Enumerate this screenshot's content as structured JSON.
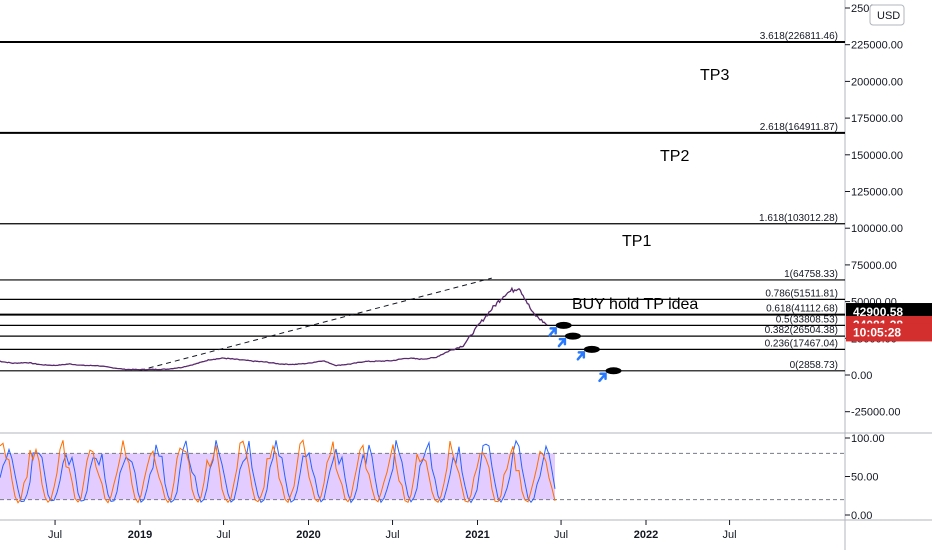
{
  "chart_data": {
    "type": "line",
    "currency": "USD",
    "price_axis": {
      "range": [
        -40000,
        255000
      ],
      "ticks": [
        "250000.00",
        "225000.00",
        "200000.00",
        "175000.00",
        "150000.00",
        "125000.00",
        "100000.00",
        "75000.00",
        "50000.00",
        "25000.00",
        "0.00",
        "-25000.00"
      ],
      "tick_values": [
        250000,
        225000,
        200000,
        175000,
        150000,
        125000,
        100000,
        75000,
        50000,
        25000,
        0,
        -25000
      ]
    },
    "fib_levels": [
      {
        "label": "3.618(226811.46)",
        "value": 226811.46,
        "bold": true
      },
      {
        "label": "2.618(164911.87)",
        "value": 164911.87,
        "bold": true
      },
      {
        "label": "1.618(103012.28)",
        "value": 103012.28,
        "bold": false
      },
      {
        "label": "1(64758.33)",
        "value": 64758.33,
        "bold": false
      },
      {
        "label": "0.786(51511.81)",
        "value": 51511.81,
        "bold": false
      },
      {
        "label": "0.618(41112.68)",
        "value": 41112.68,
        "bold": true
      },
      {
        "label": "0.5(33808.53)",
        "value": 33808.53,
        "bold": false
      },
      {
        "label": "0.382(26504.38)",
        "value": 26504.38,
        "bold": false
      },
      {
        "label": "0.236(17467.04)",
        "value": 17467.04,
        "bold": false
      },
      {
        "label": "0(2858.73)",
        "value": 2858.73,
        "bold": false
      }
    ],
    "annotations": [
      {
        "text": "TP3",
        "value": 205000
      },
      {
        "text": "TP2",
        "value": 150000
      },
      {
        "text": "TP1",
        "value": 92000
      },
      {
        "text": "BUY hold TP idea",
        "value": 49000
      }
    ],
    "price_badges": [
      {
        "text": "42900.58",
        "value": 42900.58,
        "color": "#000000"
      },
      {
        "text": "34081.38",
        "value": 34081.38,
        "color": "#d32f2f"
      },
      {
        "text": "10:05:28",
        "value": 29000,
        "color": "#d32f2f"
      }
    ],
    "time_axis": {
      "labels": [
        {
          "text": "Jul",
          "date": "2018-07-01",
          "bold": false
        },
        {
          "text": "2019",
          "date": "2019-01-01",
          "bold": true
        },
        {
          "text": "Jul",
          "date": "2019-07-01",
          "bold": false
        },
        {
          "text": "2020",
          "date": "2020-01-01",
          "bold": true
        },
        {
          "text": "Jul",
          "date": "2020-07-01",
          "bold": false
        },
        {
          "text": "2021",
          "date": "2021-01-01",
          "bold": true
        },
        {
          "text": "Jul",
          "date": "2021-07-01",
          "bold": false
        },
        {
          "text": "2022",
          "date": "2022-01-01",
          "bold": true
        },
        {
          "text": "Jul",
          "date": "2022-07-01",
          "bold": false
        }
      ]
    },
    "price_series": {
      "dates": [
        "2018-03-01",
        "2018-04-01",
        "2018-05-01",
        "2018-06-01",
        "2018-07-01",
        "2018-08-01",
        "2018-09-01",
        "2018-10-01",
        "2018-11-01",
        "2018-12-01",
        "2019-01-01",
        "2019-02-01",
        "2019-03-01",
        "2019-04-01",
        "2019-05-01",
        "2019-06-01",
        "2019-07-01",
        "2019-08-01",
        "2019-09-01",
        "2019-10-01",
        "2019-11-01",
        "2019-12-01",
        "2020-01-01",
        "2020-02-01",
        "2020-03-01",
        "2020-04-01",
        "2020-05-01",
        "2020-06-01",
        "2020-07-01",
        "2020-08-01",
        "2020-09-01",
        "2020-10-01",
        "2020-11-01",
        "2020-12-01",
        "2021-01-01",
        "2021-02-01",
        "2021-03-01",
        "2021-04-01",
        "2021-05-01",
        "2021-06-01"
      ],
      "values": [
        9500,
        8000,
        8500,
        7000,
        6500,
        7500,
        6500,
        6400,
        5000,
        3800,
        3700,
        3800,
        4000,
        5200,
        7500,
        10500,
        11500,
        10500,
        9500,
        8800,
        7500,
        7200,
        8000,
        9800,
        6500,
        7500,
        9200,
        9400,
        9800,
        11500,
        10800,
        11800,
        16500,
        20000,
        33000,
        45000,
        55000,
        60000,
        42000,
        34081
      ]
    },
    "trend_line": {
      "start": {
        "date": "2019-01-01",
        "value": 3200
      },
      "end": {
        "date": "2021-02-01",
        "value": 66000
      },
      "style": "dashed"
    },
    "buy_markers": [
      {
        "date": "2021-06-15",
        "value": 33808.53
      },
      {
        "date": "2021-07-05",
        "value": 26504.38
      },
      {
        "date": "2021-08-15",
        "value": 17467.04
      },
      {
        "date": "2021-10-01",
        "value": 2858.73
      }
    ],
    "oscillator": {
      "type": "stochastic",
      "range": [
        0,
        100
      ],
      "ticks": [
        "100.00",
        "50.00",
        "0.00"
      ],
      "tick_values": [
        100,
        50,
        0
      ],
      "band": [
        20,
        80
      ],
      "band_color": "#e3ccff",
      "k_color": "#2962ff",
      "d_color": "#ff6d00"
    }
  }
}
